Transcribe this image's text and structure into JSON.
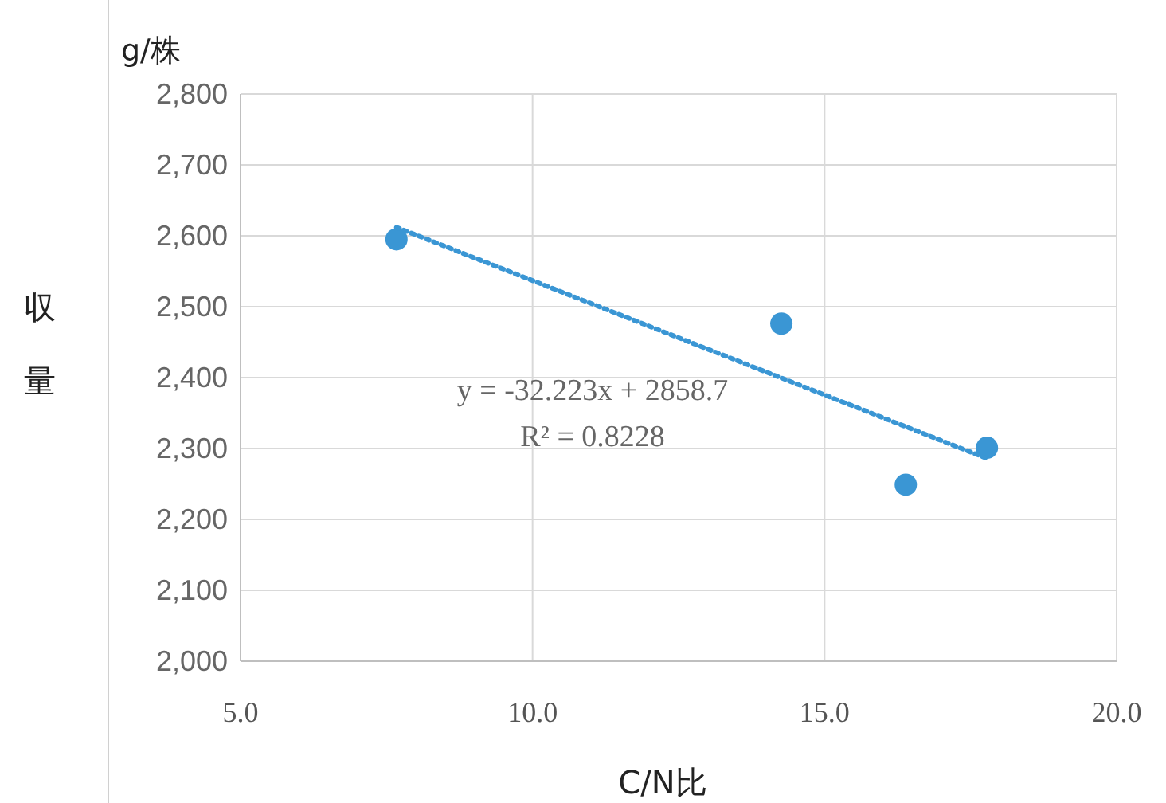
{
  "chart_data": {
    "type": "scatter",
    "xlabel": "C/N比",
    "ylabel": "収量",
    "annotations": [
      "g/株",
      "y = -32.223x + 2858.7",
      "R² = 0.8228"
    ],
    "series": [
      {
        "color": "#3a96d4",
        "marker": "circle",
        "x": [
          7.67,
          14.26,
          16.39,
          17.78
        ],
        "values": [
          2595,
          2476,
          2249,
          2301
        ]
      },
      {
        "type": "line",
        "color": "#3a96d4",
        "marker": "none",
        "line_style": "dotted",
        "x": [
          7.67,
          17.78
        ],
        "values": [
          2612,
          2286
        ]
      }
    ],
    "xlim": [
      5,
      20
    ],
    "xticks": [
      {
        "value": 5,
        "label": "5.0"
      },
      {
        "value": 10,
        "label": "10.0"
      },
      {
        "value": 15,
        "label": "15.0"
      },
      {
        "value": 20,
        "label": "20.0"
      }
    ],
    "ylim": [
      2000,
      2800
    ],
    "yticks": [
      {
        "value": 2000,
        "label": "2,000"
      },
      {
        "value": 2100,
        "label": "2,100"
      },
      {
        "value": 2200,
        "label": "2,200"
      },
      {
        "value": 2300,
        "label": "2,300"
      },
      {
        "value": 2400,
        "label": "2,400"
      },
      {
        "value": 2500,
        "label": "2,500"
      },
      {
        "value": 2600,
        "label": "2,600"
      },
      {
        "value": 2700,
        "label": "2,700"
      },
      {
        "value": 2800,
        "label": "2,800"
      }
    ],
    "grid": true
  }
}
